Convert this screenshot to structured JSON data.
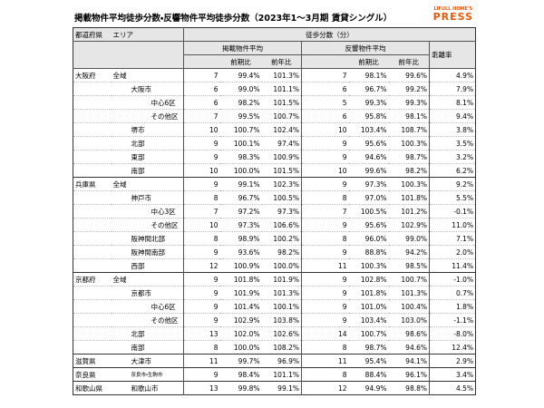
{
  "header": {
    "title": "掲載物件平均徒歩分数・反響物件平均徒歩分数（2023年1～3月期 賃貸シングル）",
    "logo_top": "LIFULL HOME'S",
    "logo_bottom": "PRESS"
  },
  "table": {
    "col_pref": "都道府県",
    "col_area": "エリア",
    "col_main": "徒歩分数（分）",
    "col_listed": "掲載物件平均",
    "col_inquiry": "反響物件平均",
    "col_gap": "乖離率",
    "col_qoq": "前期比",
    "col_yoy": "前年比",
    "rows": [
      {
        "pref": "大阪府",
        "a1": "全域",
        "values": [
          "7",
          "99.4%",
          "101.3%",
          "7",
          "98.1%",
          "99.6%",
          "4.9%"
        ]
      },
      {
        "a2": "大阪市",
        "values": [
          "6",
          "99.0%",
          "101.1%",
          "6",
          "96.7%",
          "99.2%",
          "7.9%"
        ]
      },
      {
        "a3": "中心6区",
        "values": [
          "6",
          "98.2%",
          "101.5%",
          "5",
          "99.3%",
          "99.3%",
          "8.1%"
        ]
      },
      {
        "a3": "その他区",
        "values": [
          "7",
          "99.5%",
          "100.7%",
          "6",
          "95.8%",
          "98.1%",
          "9.4%"
        ]
      },
      {
        "a2": "堺市",
        "values": [
          "10",
          "100.7%",
          "102.4%",
          "10",
          "103.4%",
          "108.7%",
          "3.8%"
        ]
      },
      {
        "a2": "北部",
        "values": [
          "9",
          "100.1%",
          "97.4%",
          "9",
          "95.6%",
          "100.3%",
          "3.5%"
        ]
      },
      {
        "a2": "東部",
        "values": [
          "9",
          "98.3%",
          "100.9%",
          "9",
          "94.6%",
          "98.7%",
          "3.2%"
        ]
      },
      {
        "a2": "南部",
        "values": [
          "10",
          "100.0%",
          "101.5%",
          "10",
          "99.6%",
          "98.2%",
          "6.2%"
        ]
      },
      {
        "pref": "兵庫県",
        "a1": "全域",
        "values": [
          "9",
          "99.1%",
          "102.3%",
          "9",
          "97.3%",
          "100.3%",
          "9.2%"
        ]
      },
      {
        "a2": "神戸市",
        "values": [
          "8",
          "96.7%",
          "100.5%",
          "8",
          "97.0%",
          "101.8%",
          "5.5%"
        ]
      },
      {
        "a3": "中心3区",
        "values": [
          "7",
          "97.2%",
          "97.3%",
          "7",
          "100.5%",
          "101.2%",
          "-0.1%"
        ]
      },
      {
        "a3": "その他区",
        "values": [
          "10",
          "97.3%",
          "106.6%",
          "9",
          "95.6%",
          "102.9%",
          "11.0%"
        ]
      },
      {
        "a2": "阪神間北部",
        "values": [
          "8",
          "98.9%",
          "100.2%",
          "8",
          "96.0%",
          "99.0%",
          "7.1%"
        ]
      },
      {
        "a2": "阪神間南部",
        "values": [
          "9",
          "93.6%",
          "98.2%",
          "9",
          "88.8%",
          "94.2%",
          "2.0%"
        ]
      },
      {
        "a2": "西部",
        "values": [
          "12",
          "100.9%",
          "100.0%",
          "11",
          "100.3%",
          "98.5%",
          "11.4%"
        ]
      },
      {
        "pref": "京都府",
        "a1": "全域",
        "values": [
          "9",
          "101.8%",
          "101.9%",
          "9",
          "102.8%",
          "100.7%",
          "-1.0%"
        ]
      },
      {
        "a2": "京都市",
        "values": [
          "9",
          "101.9%",
          "101.3%",
          "9",
          "101.8%",
          "101.3%",
          "0.7%"
        ]
      },
      {
        "a3": "中心6区",
        "values": [
          "9",
          "101.4%",
          "100.1%",
          "9",
          "101.0%",
          "100.4%",
          "1.8%"
        ]
      },
      {
        "a3": "その他区",
        "values": [
          "9",
          "102.9%",
          "103.8%",
          "9",
          "103.4%",
          "103.0%",
          "-1.1%"
        ]
      },
      {
        "a2": "北部",
        "values": [
          "13",
          "102.0%",
          "102.6%",
          "14",
          "100.7%",
          "98.6%",
          "-8.0%"
        ]
      },
      {
        "a2": "南部",
        "values": [
          "8",
          "100.0%",
          "108.2%",
          "8",
          "98.7%",
          "94.6%",
          "12.4%"
        ]
      },
      {
        "pref": "滋賀県",
        "a2": "大津市",
        "values": [
          "11",
          "99.7%",
          "96.9%",
          "11",
          "95.4%",
          "94.1%",
          "2.9%"
        ]
      },
      {
        "pref": "奈良県",
        "a2": "奈良市・生駒市",
        "small": true,
        "values": [
          "9",
          "98.4%",
          "101.1%",
          "8",
          "88.4%",
          "96.1%",
          "3.4%"
        ]
      },
      {
        "pref": "和歌山県",
        "a2": "和歌山市",
        "values": [
          "13",
          "99.8%",
          "99.1%",
          "12",
          "94.9%",
          "98.8%",
          "4.5%"
        ]
      }
    ]
  }
}
